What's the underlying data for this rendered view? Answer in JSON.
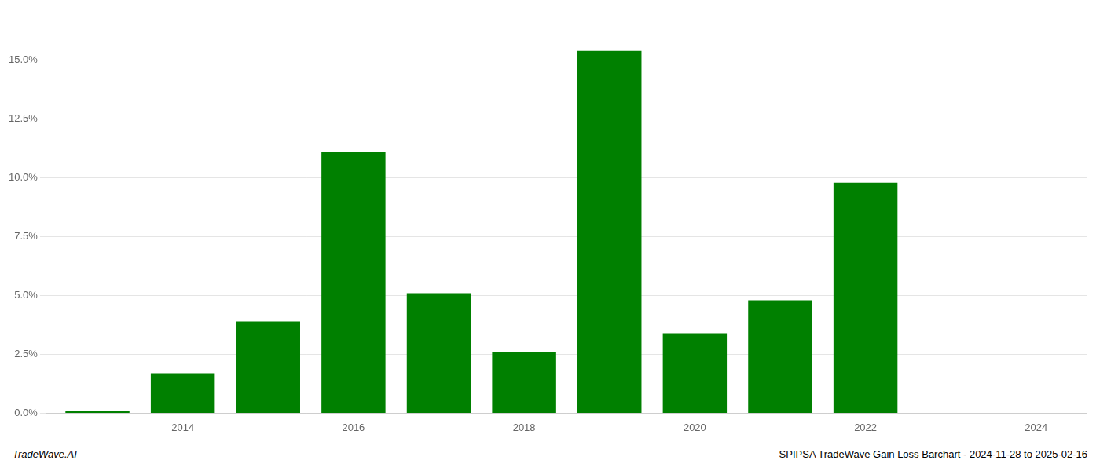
{
  "chart_data": {
    "type": "bar",
    "x": [
      2013,
      2014,
      2015,
      2016,
      2017,
      2018,
      2019,
      2020,
      2021,
      2022,
      2023,
      2024
    ],
    "values": [
      0.001,
      0.017,
      0.039,
      0.111,
      0.051,
      0.026,
      0.154,
      0.034,
      0.048,
      0.098,
      0.0,
      0.0
    ],
    "color": "#008000",
    "xlim": [
      2012.4,
      2024.6
    ],
    "xticks": [
      2014,
      2016,
      2018,
      2020,
      2022,
      2024
    ],
    "ylim": [
      0,
      0.168
    ],
    "yticks": [
      {
        "value": 0.0,
        "label": "0.0%"
      },
      {
        "value": 0.025,
        "label": "2.5%"
      },
      {
        "value": 0.05,
        "label": "5.0%"
      },
      {
        "value": 0.075,
        "label": "7.5%"
      },
      {
        "value": 0.1,
        "label": "10.0%"
      },
      {
        "value": 0.125,
        "label": "12.5%"
      },
      {
        "value": 0.15,
        "label": "15.0%"
      }
    ],
    "grid": true,
    "annotations": [
      "TradeWave.AI",
      "SPIPSA TradeWave Gain Loss Barchart - 2024-11-28 to 2025-02-16"
    ]
  }
}
